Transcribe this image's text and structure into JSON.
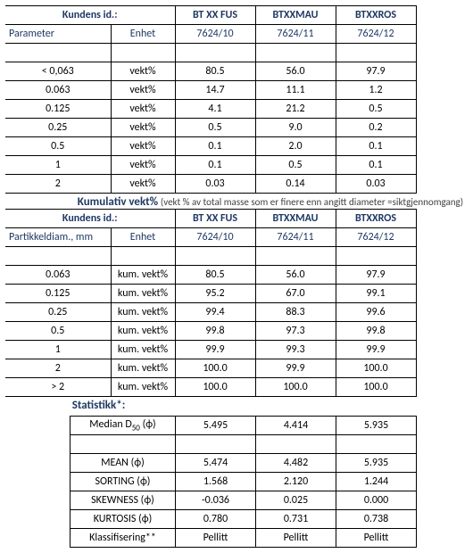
{
  "meta": {
    "kundens_id": "Kundens id.:",
    "parameter": "Parameter",
    "enhet": "Enhet",
    "partikkel": "Partikkeldiam., mm",
    "statistikk": "Statistikk*:"
  },
  "cols": {
    "c1": "BT XX FUS",
    "c2": "BTXXMAU",
    "c3": "BTXXROS",
    "s1": "7624/10",
    "s2": "7624/11",
    "s3": "7624/12"
  },
  "section2": {
    "title": "Kumulativ vekt%",
    "note": "(vekt % av total masse  som er finere enn angitt diameter =siktgjennomgang)"
  },
  "unit1": "vekt%",
  "unit2": "kum. vekt%",
  "t1": {
    "rows": [
      {
        "label": "< 0,063",
        "v": [
          "80.5",
          "56.0",
          "97.9"
        ]
      },
      {
        "label": "0.063",
        "v": [
          "14.7",
          "11.1",
          "1.2"
        ]
      },
      {
        "label": "0.125",
        "v": [
          "4.1",
          "21.2",
          "0.5"
        ]
      },
      {
        "label": "0.25",
        "v": [
          "0.5",
          "9.0",
          "0.2"
        ]
      },
      {
        "label": "0.5",
        "v": [
          "0.1",
          "2.0",
          "0.1"
        ]
      },
      {
        "label": "1",
        "v": [
          "0.1",
          "0.5",
          "0.1"
        ]
      },
      {
        "label": "2",
        "v": [
          "0.03",
          "0.14",
          "0.03"
        ]
      }
    ]
  },
  "t2": {
    "rows": [
      {
        "label": "0.063",
        "v": [
          "80.5",
          "56.0",
          "97.9"
        ]
      },
      {
        "label": "0.125",
        "v": [
          "95.2",
          "67.0",
          "99.1"
        ]
      },
      {
        "label": "0.25",
        "v": [
          "99.4",
          "88.3",
          "99.6"
        ]
      },
      {
        "label": "0.5",
        "v": [
          "99.8",
          "97.3",
          "99.8"
        ]
      },
      {
        "label": "1",
        "v": [
          "99.9",
          "99.3",
          "99.9"
        ]
      },
      {
        "label": "2",
        "v": [
          "100.0",
          "99.9",
          "100.0"
        ]
      },
      {
        "label": "> 2",
        "v": [
          "100.0",
          "100.0",
          "100.0"
        ]
      }
    ]
  },
  "t3": {
    "rows": [
      {
        "label": "Median D₅₀ (ϕ)",
        "v": [
          "5.495",
          "4.414",
          "5.935"
        ]
      },
      {
        "label": "MEAN  (ϕ)",
        "v": [
          "5.474",
          "4.482",
          "5.935"
        ]
      },
      {
        "label": "SORTING  (ϕ)",
        "v": [
          "1.568",
          "2.120",
          "1.244"
        ]
      },
      {
        "label": "SKEWNESS (ϕ)",
        "v": [
          "-0.036",
          "0.025",
          "0.000"
        ]
      },
      {
        "label": "KURTOSIS  (ϕ)",
        "v": [
          "0.780",
          "0.731",
          "0.738"
        ]
      },
      {
        "label": "Klassifisering**",
        "v": [
          "Pellitt",
          "Pellitt",
          "Pellitt"
        ]
      }
    ]
  },
  "style": {
    "widths": [
      118,
      72,
      90,
      90,
      90
    ],
    "header_color": "#1f3864"
  }
}
